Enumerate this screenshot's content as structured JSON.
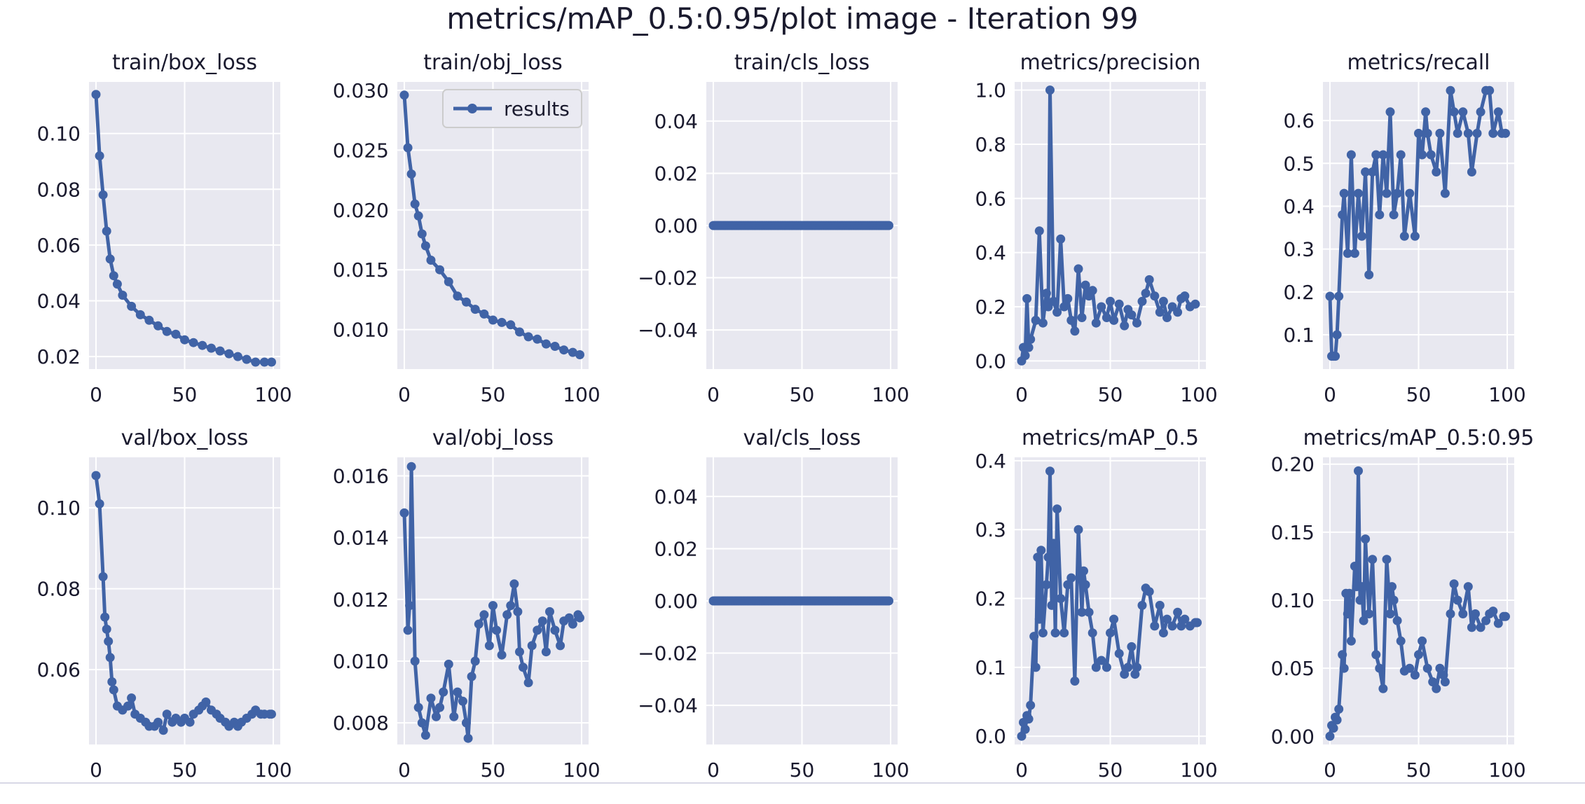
{
  "title": "metrics/mAP_0.5:0.95/plot image - Iteration 99",
  "colors": {
    "series": "#4063a6",
    "panel_bg": "#e8e8f0",
    "grid": "#ffffff",
    "text": "#1a1a2e"
  },
  "legend": {
    "label": "results",
    "panel": "train/obj_loss"
  },
  "chart_data": [
    {
      "type": "line",
      "title": "train/box_loss",
      "xlim": [
        0,
        100
      ],
      "ylim": [
        0.0155,
        0.1185
      ],
      "xticks": [
        0,
        50,
        100
      ],
      "yticks": [
        0.02,
        0.04,
        0.06,
        0.08,
        0.1
      ],
      "ytick_labels": [
        "0.02",
        "0.04",
        "0.06",
        "0.08",
        "0.10"
      ],
      "series": [
        {
          "name": "results",
          "x": [
            0,
            2,
            4,
            6,
            8,
            10,
            12,
            15,
            20,
            25,
            30,
            35,
            40,
            45,
            50,
            55,
            60,
            65,
            70,
            75,
            80,
            85,
            90,
            95,
            99
          ],
          "y": [
            0.114,
            0.092,
            0.078,
            0.065,
            0.055,
            0.049,
            0.046,
            0.042,
            0.038,
            0.035,
            0.033,
            0.031,
            0.029,
            0.028,
            0.026,
            0.025,
            0.024,
            0.023,
            0.022,
            0.021,
            0.02,
            0.019,
            0.018,
            0.018,
            0.018
          ]
        }
      ]
    },
    {
      "type": "line",
      "title": "train/obj_loss",
      "xlim": [
        0,
        100
      ],
      "ylim": [
        0.0067,
        0.0307
      ],
      "xticks": [
        0,
        50,
        100
      ],
      "yticks": [
        0.01,
        0.015,
        0.02,
        0.025,
        0.03
      ],
      "ytick_labels": [
        "0.010",
        "0.015",
        "0.020",
        "0.025",
        "0.030"
      ],
      "series": [
        {
          "name": "results",
          "x": [
            0,
            2,
            4,
            6,
            8,
            10,
            12,
            15,
            20,
            25,
            30,
            35,
            40,
            45,
            50,
            55,
            60,
            65,
            70,
            75,
            80,
            85,
            90,
            95,
            99
          ],
          "y": [
            0.0296,
            0.0252,
            0.023,
            0.0205,
            0.0195,
            0.018,
            0.017,
            0.0158,
            0.015,
            0.014,
            0.0128,
            0.0123,
            0.0117,
            0.0113,
            0.0108,
            0.0106,
            0.0104,
            0.0098,
            0.0094,
            0.0092,
            0.0088,
            0.0086,
            0.0083,
            0.0081,
            0.0079
          ]
        }
      ]
    },
    {
      "type": "line",
      "title": "train/cls_loss",
      "xlim": [
        0,
        100
      ],
      "ylim": [
        -0.055,
        0.055
      ],
      "xticks": [
        0,
        50,
        100
      ],
      "yticks": [
        -0.04,
        -0.02,
        0.0,
        0.02,
        0.04
      ],
      "ytick_labels": [
        "−0.04",
        "−0.02",
        "0.00",
        "0.02",
        "0.04"
      ],
      "series": [
        {
          "name": "results",
          "x": [
            0,
            99
          ],
          "y": [
            0,
            0
          ],
          "dense": true
        }
      ]
    },
    {
      "type": "line",
      "title": "metrics/precision",
      "xlim": [
        0,
        100
      ],
      "ylim": [
        -0.03,
        1.03
      ],
      "xticks": [
        0,
        50,
        100
      ],
      "yticks": [
        0.0,
        0.2,
        0.4,
        0.6,
        0.8,
        1.0
      ],
      "ytick_labels": [
        "0.0",
        "0.2",
        "0.4",
        "0.6",
        "0.8",
        "1.0"
      ],
      "series": [
        {
          "name": "results",
          "x": [
            0,
            1,
            2,
            3,
            4,
            5,
            8,
            10,
            12,
            14,
            15,
            16,
            18,
            20,
            22,
            24,
            26,
            28,
            30,
            32,
            34,
            36,
            38,
            40,
            42,
            45,
            48,
            50,
            52,
            55,
            58,
            60,
            62,
            65,
            68,
            70,
            72,
            75,
            78,
            80,
            82,
            85,
            88,
            90,
            92,
            95,
            98
          ],
          "y": [
            0.0,
            0.05,
            0.02,
            0.23,
            0.05,
            0.08,
            0.15,
            0.48,
            0.14,
            0.25,
            0.2,
            1.0,
            0.22,
            0.18,
            0.45,
            0.2,
            0.23,
            0.15,
            0.11,
            0.34,
            0.16,
            0.28,
            0.24,
            0.26,
            0.14,
            0.2,
            0.16,
            0.22,
            0.15,
            0.21,
            0.13,
            0.19,
            0.17,
            0.14,
            0.22,
            0.25,
            0.3,
            0.24,
            0.18,
            0.22,
            0.16,
            0.2,
            0.18,
            0.23,
            0.24,
            0.2,
            0.21
          ]
        }
      ]
    },
    {
      "type": "line",
      "title": "metrics/recall",
      "xlim": [
        0,
        100
      ],
      "ylim": [
        0.02,
        0.69
      ],
      "xticks": [
        0,
        50,
        100
      ],
      "yticks": [
        0.1,
        0.2,
        0.3,
        0.4,
        0.5,
        0.6
      ],
      "ytick_labels": [
        "0.1",
        "0.2",
        "0.3",
        "0.4",
        "0.5",
        "0.6"
      ],
      "series": [
        {
          "name": "results",
          "x": [
            0,
            1,
            2,
            3,
            4,
            5,
            7,
            8,
            10,
            12,
            14,
            16,
            18,
            20,
            22,
            24,
            26,
            28,
            30,
            32,
            34,
            36,
            38,
            40,
            42,
            45,
            48,
            50,
            52,
            54,
            55,
            57,
            60,
            62,
            65,
            68,
            70,
            72,
            75,
            78,
            80,
            83,
            85,
            88,
            90,
            92,
            95,
            97,
            99
          ],
          "y": [
            0.19,
            0.05,
            0.05,
            0.05,
            0.1,
            0.19,
            0.38,
            0.43,
            0.29,
            0.52,
            0.29,
            0.43,
            0.33,
            0.48,
            0.24,
            0.48,
            0.52,
            0.38,
            0.52,
            0.43,
            0.62,
            0.38,
            0.43,
            0.52,
            0.33,
            0.43,
            0.33,
            0.57,
            0.52,
            0.62,
            0.57,
            0.52,
            0.48,
            0.57,
            0.43,
            0.67,
            0.62,
            0.57,
            0.62,
            0.57,
            0.48,
            0.57,
            0.62,
            0.67,
            0.67,
            0.57,
            0.62,
            0.57,
            0.57
          ]
        }
      ]
    },
    {
      "type": "line",
      "title": "val/box_loss",
      "xlim": [
        0,
        100
      ],
      "ylim": [
        0.0415,
        0.1125
      ],
      "xticks": [
        0,
        50,
        100
      ],
      "yticks": [
        0.06,
        0.08,
        0.1
      ],
      "ytick_labels": [
        "0.06",
        "0.08",
        "0.10"
      ],
      "series": [
        {
          "name": "results",
          "x": [
            0,
            2,
            4,
            5,
            6,
            7,
            8,
            9,
            10,
            12,
            15,
            18,
            20,
            22,
            25,
            28,
            30,
            33,
            35,
            38,
            40,
            43,
            45,
            48,
            50,
            53,
            55,
            58,
            60,
            62,
            65,
            68,
            70,
            73,
            75,
            78,
            80,
            82,
            85,
            88,
            90,
            93,
            95,
            98,
            99
          ],
          "y": [
            0.108,
            0.101,
            0.083,
            0.073,
            0.07,
            0.067,
            0.063,
            0.057,
            0.055,
            0.051,
            0.05,
            0.051,
            0.053,
            0.049,
            0.048,
            0.047,
            0.046,
            0.046,
            0.047,
            0.045,
            0.049,
            0.047,
            0.048,
            0.047,
            0.048,
            0.047,
            0.049,
            0.05,
            0.051,
            0.052,
            0.05,
            0.049,
            0.048,
            0.047,
            0.046,
            0.047,
            0.046,
            0.047,
            0.048,
            0.049,
            0.05,
            0.049,
            0.049,
            0.049,
            0.049
          ]
        }
      ]
    },
    {
      "type": "line",
      "title": "val/obj_loss",
      "xlim": [
        0,
        100
      ],
      "ylim": [
        0.0073,
        0.0166
      ],
      "xticks": [
        0,
        50,
        100
      ],
      "yticks": [
        0.008,
        0.01,
        0.012,
        0.014,
        0.016
      ],
      "ytick_labels": [
        "0.008",
        "0.010",
        "0.012",
        "0.014",
        "0.016"
      ],
      "series": [
        {
          "name": "results",
          "x": [
            0,
            2,
            3,
            4,
            6,
            8,
            10,
            12,
            15,
            18,
            20,
            22,
            25,
            28,
            30,
            33,
            35,
            36,
            38,
            40,
            42,
            45,
            48,
            50,
            52,
            55,
            58,
            60,
            62,
            64,
            65,
            67,
            70,
            72,
            75,
            78,
            80,
            82,
            85,
            88,
            90,
            93,
            95,
            98,
            99
          ],
          "y": [
            0.0148,
            0.011,
            0.0118,
            0.0163,
            0.01,
            0.0085,
            0.008,
            0.0076,
            0.0088,
            0.0082,
            0.0085,
            0.009,
            0.0099,
            0.0082,
            0.009,
            0.0087,
            0.008,
            0.0075,
            0.0095,
            0.01,
            0.0112,
            0.0115,
            0.0105,
            0.0118,
            0.011,
            0.0102,
            0.0115,
            0.0118,
            0.0125,
            0.0116,
            0.0103,
            0.0098,
            0.0093,
            0.0105,
            0.011,
            0.0113,
            0.0103,
            0.0116,
            0.011,
            0.0105,
            0.0113,
            0.0114,
            0.0112,
            0.0115,
            0.0114
          ]
        }
      ]
    },
    {
      "type": "line",
      "title": "val/cls_loss",
      "xlim": [
        0,
        100
      ],
      "ylim": [
        -0.055,
        0.055
      ],
      "xticks": [
        0,
        50,
        100
      ],
      "yticks": [
        -0.04,
        -0.02,
        0.0,
        0.02,
        0.04
      ],
      "ytick_labels": [
        "−0.04",
        "−0.02",
        "0.00",
        "0.02",
        "0.04"
      ],
      "series": [
        {
          "name": "results",
          "x": [
            0,
            99
          ],
          "y": [
            0,
            0
          ],
          "dense": true
        }
      ]
    },
    {
      "type": "line",
      "title": "metrics/mAP_0.5",
      "xlim": [
        0,
        100
      ],
      "ylim": [
        -0.012,
        0.405
      ],
      "xticks": [
        0,
        50,
        100
      ],
      "yticks": [
        0.0,
        0.1,
        0.2,
        0.3,
        0.4
      ],
      "ytick_labels": [
        "0.0",
        "0.1",
        "0.2",
        "0.3",
        "0.4"
      ],
      "series": [
        {
          "name": "results",
          "x": [
            0,
            1,
            2,
            3,
            4,
            5,
            7,
            8,
            9,
            10,
            11,
            12,
            14,
            15,
            16,
            17,
            18,
            19,
            20,
            22,
            24,
            26,
            28,
            30,
            32,
            34,
            35,
            36,
            38,
            40,
            42,
            45,
            48,
            50,
            52,
            55,
            58,
            60,
            62,
            64,
            65,
            68,
            70,
            72,
            75,
            78,
            80,
            82,
            85,
            88,
            90,
            92,
            95,
            98,
            99
          ],
          "y": [
            0.0,
            0.02,
            0.01,
            0.03,
            0.025,
            0.045,
            0.145,
            0.1,
            0.26,
            0.17,
            0.27,
            0.15,
            0.22,
            0.26,
            0.385,
            0.19,
            0.28,
            0.15,
            0.33,
            0.2,
            0.15,
            0.22,
            0.23,
            0.08,
            0.3,
            0.18,
            0.24,
            0.22,
            0.18,
            0.15,
            0.1,
            0.11,
            0.1,
            0.15,
            0.17,
            0.12,
            0.09,
            0.1,
            0.13,
            0.09,
            0.1,
            0.19,
            0.215,
            0.21,
            0.16,
            0.19,
            0.15,
            0.17,
            0.16,
            0.18,
            0.16,
            0.17,
            0.16,
            0.165,
            0.165
          ]
        }
      ]
    },
    {
      "type": "line",
      "title": "metrics/mAP_0.5:0.95",
      "xlim": [
        0,
        100
      ],
      "ylim": [
        -0.006,
        0.205
      ],
      "xticks": [
        0,
        50,
        100
      ],
      "yticks": [
        0.0,
        0.05,
        0.1,
        0.15,
        0.2
      ],
      "ytick_labels": [
        "0.00",
        "0.05",
        "0.10",
        "0.15",
        "0.20"
      ],
      "series": [
        {
          "name": "results",
          "x": [
            0,
            1,
            2,
            3,
            4,
            5,
            7,
            8,
            9,
            10,
            11,
            12,
            14,
            15,
            16,
            17,
            18,
            19,
            20,
            22,
            24,
            26,
            28,
            30,
            32,
            34,
            35,
            36,
            38,
            40,
            42,
            45,
            48,
            50,
            52,
            55,
            58,
            60,
            62,
            64,
            65,
            68,
            70,
            72,
            75,
            78,
            80,
            82,
            85,
            88,
            90,
            92,
            95,
            98,
            99
          ],
          "y": [
            0.0,
            0.008,
            0.006,
            0.014,
            0.012,
            0.02,
            0.06,
            0.05,
            0.105,
            0.09,
            0.105,
            0.07,
            0.125,
            0.11,
            0.195,
            0.1,
            0.11,
            0.085,
            0.145,
            0.09,
            0.13,
            0.06,
            0.05,
            0.035,
            0.13,
            0.09,
            0.11,
            0.1,
            0.085,
            0.07,
            0.048,
            0.05,
            0.045,
            0.06,
            0.07,
            0.05,
            0.04,
            0.035,
            0.05,
            0.045,
            0.04,
            0.09,
            0.112,
            0.1,
            0.09,
            0.11,
            0.08,
            0.09,
            0.08,
            0.085,
            0.09,
            0.092,
            0.083,
            0.088,
            0.088
          ]
        }
      ]
    }
  ]
}
